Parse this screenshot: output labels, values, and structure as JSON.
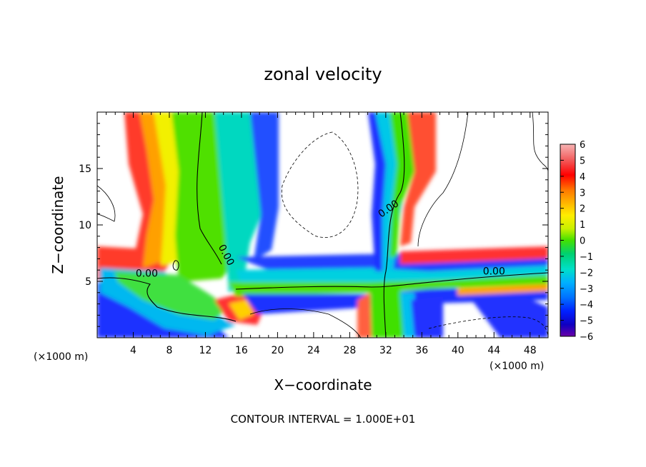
{
  "chart_data": {
    "type": "heatmap",
    "title": "zonal velocity",
    "xlabel": "X−coordinate",
    "ylabel": "Z−coordinate",
    "x_unit_left": "(×1000 m)",
    "x_unit_right": "(×1000 m)",
    "footer": "CONTOUR INTERVAL = 1.000E+01",
    "xlim": [
      0,
      50
    ],
    "ylim": [
      0,
      20
    ],
    "x_ticks": [
      4,
      8,
      12,
      16,
      20,
      24,
      28,
      32,
      36,
      40,
      44,
      48
    ],
    "y_ticks": [
      5,
      10,
      15
    ],
    "colorbar": {
      "ticks": [
        6,
        5,
        4,
        3,
        2,
        1,
        0,
        -1,
        -2,
        -3,
        -4,
        -5,
        -6
      ],
      "tick_labels": [
        "6",
        "5",
        "4",
        "3",
        "2",
        "1",
        "0",
        "−1",
        "−2",
        "−3",
        "−4",
        "−5",
        "−6"
      ],
      "range": [
        -6,
        6
      ],
      "colors_top_to_bottom": [
        "#f7b4b4",
        "#f25a5a",
        "#ff0000",
        "#ff7a00",
        "#ffb000",
        "#ffee00",
        "#c8f000",
        "#44e000",
        "#00d070",
        "#00e0c8",
        "#00b0ff",
        "#0070ff",
        "#0020ff",
        "#1000c0",
        "#6a00a8"
      ]
    },
    "contour_labels": [
      {
        "text": "0.00",
        "x": 5.5,
        "y": 5.4
      },
      {
        "text": "0.00",
        "x": 14.0,
        "y": 7.2
      },
      {
        "text": "0.00",
        "x": 32.5,
        "y": 11.2
      },
      {
        "text": "0.00",
        "x": 44.0,
        "y": 5.6
      }
    ],
    "legend": "right"
  }
}
